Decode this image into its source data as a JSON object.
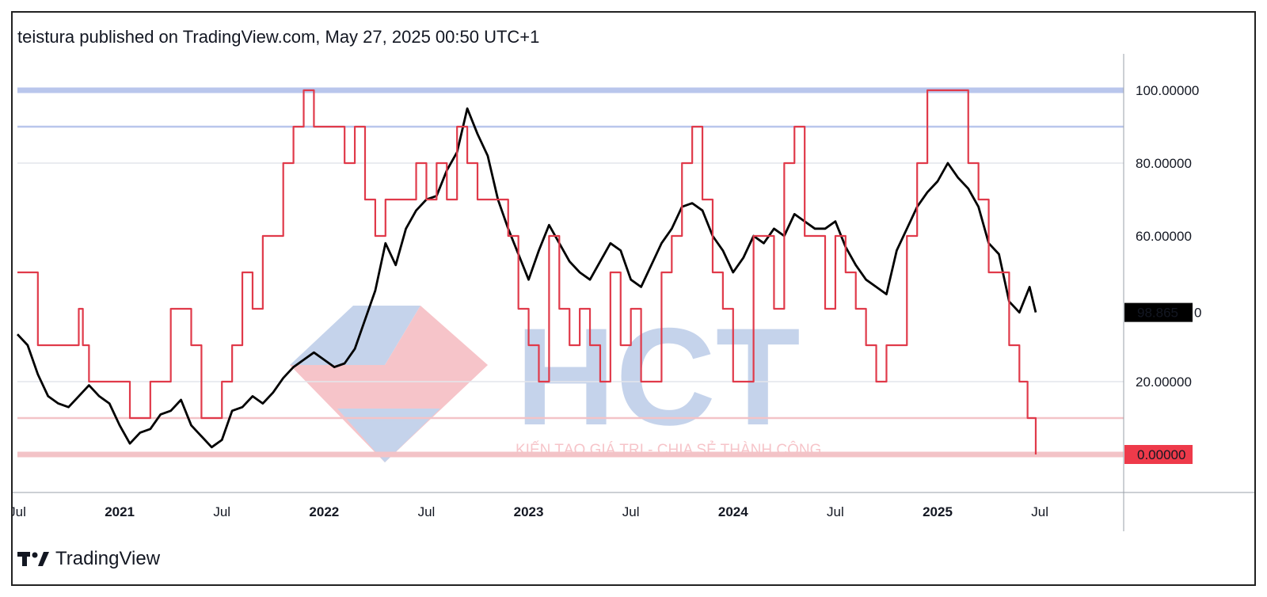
{
  "header": {
    "published": "teistura published on TradingView.com, May 27, 2025 00:50 UTC+1"
  },
  "brand": {
    "name": "TradingView",
    "logo_icon": "tradingview-logo-icon"
  },
  "watermark": {
    "logo_letters": "HCT",
    "tagline": "KIẾN TẠO GIÁ TRỊ - CHIA SẺ THÀNH CÔNG"
  },
  "colors": {
    "price_line": "#000000",
    "indicator_line": "#e03a4a",
    "upper_band": "#b9c6ec",
    "lower_band": "#f3c3c7",
    "badge_price": "#000000",
    "badge_zero": "#ee3a4a"
  },
  "chart_data": {
    "type": "line",
    "title": "",
    "xlabel": "",
    "ylabel": "",
    "ylim": [
      -10,
      110
    ],
    "x_ticks": [
      {
        "label": "Jul",
        "t": 2020.5,
        "bold": false
      },
      {
        "label": "2021",
        "t": 2021.0,
        "bold": true
      },
      {
        "label": "Jul",
        "t": 2021.5,
        "bold": false
      },
      {
        "label": "2022",
        "t": 2022.0,
        "bold": true
      },
      {
        "label": "Jul",
        "t": 2022.5,
        "bold": false
      },
      {
        "label": "2023",
        "t": 2023.0,
        "bold": true
      },
      {
        "label": "Jul",
        "t": 2023.5,
        "bold": false
      },
      {
        "label": "2024",
        "t": 2024.0,
        "bold": true
      },
      {
        "label": "Jul",
        "t": 2024.5,
        "bold": false
      },
      {
        "label": "2025",
        "t": 2025.0,
        "bold": true
      },
      {
        "label": "Jul",
        "t": 2025.5,
        "bold": false
      }
    ],
    "y_ticks": [
      {
        "label": "100.00000",
        "v": 100
      },
      {
        "label": "80.00000",
        "v": 80
      },
      {
        "label": "60.00000",
        "v": 60
      },
      {
        "label": "20.00000",
        "v": 20
      }
    ],
    "horizontal_levels": [
      {
        "v": 100,
        "role": "upper"
      },
      {
        "v": 90,
        "role": "upper"
      },
      {
        "v": 80,
        "role": "grid"
      },
      {
        "v": 20,
        "role": "grid"
      },
      {
        "v": 10,
        "role": "lower"
      },
      {
        "v": 0,
        "role": "lower"
      }
    ],
    "badges": [
      {
        "label": "98.865",
        "v": 39,
        "color": "#000000"
      },
      {
        "label": "0.00000",
        "v": 0,
        "color": "#ee3a4a"
      }
    ],
    "series": [
      {
        "color": "#000000",
        "points": [
          [
            2020.5,
            33
          ],
          [
            2020.55,
            30
          ],
          [
            2020.6,
            22
          ],
          [
            2020.65,
            16
          ],
          [
            2020.7,
            14
          ],
          [
            2020.75,
            13
          ],
          [
            2020.8,
            16
          ],
          [
            2020.85,
            19
          ],
          [
            2020.9,
            16
          ],
          [
            2020.95,
            14
          ],
          [
            2021.0,
            8
          ],
          [
            2021.05,
            3
          ],
          [
            2021.1,
            6
          ],
          [
            2021.15,
            7
          ],
          [
            2021.2,
            11
          ],
          [
            2021.25,
            12
          ],
          [
            2021.3,
            15
          ],
          [
            2021.35,
            8
          ],
          [
            2021.4,
            5
          ],
          [
            2021.45,
            2
          ],
          [
            2021.5,
            4
          ],
          [
            2021.55,
            12
          ],
          [
            2021.6,
            13
          ],
          [
            2021.65,
            16
          ],
          [
            2021.7,
            14
          ],
          [
            2021.75,
            17
          ],
          [
            2021.8,
            21
          ],
          [
            2021.85,
            24
          ],
          [
            2021.9,
            26
          ],
          [
            2021.95,
            28
          ],
          [
            2022.0,
            26
          ],
          [
            2022.05,
            24
          ],
          [
            2022.1,
            25
          ],
          [
            2022.15,
            29
          ],
          [
            2022.2,
            37
          ],
          [
            2022.25,
            45
          ],
          [
            2022.3,
            58
          ],
          [
            2022.35,
            52
          ],
          [
            2022.4,
            62
          ],
          [
            2022.45,
            67
          ],
          [
            2022.5,
            70
          ],
          [
            2022.55,
            71
          ],
          [
            2022.6,
            78
          ],
          [
            2022.65,
            83
          ],
          [
            2022.7,
            95
          ],
          [
            2022.75,
            88
          ],
          [
            2022.8,
            82
          ],
          [
            2022.85,
            70
          ],
          [
            2022.9,
            62
          ],
          [
            2022.95,
            55
          ],
          [
            2023.0,
            48
          ],
          [
            2023.05,
            56
          ],
          [
            2023.1,
            63
          ],
          [
            2023.15,
            58
          ],
          [
            2023.2,
            53
          ],
          [
            2023.25,
            50
          ],
          [
            2023.3,
            48
          ],
          [
            2023.35,
            53
          ],
          [
            2023.4,
            58
          ],
          [
            2023.45,
            56
          ],
          [
            2023.5,
            48
          ],
          [
            2023.55,
            46
          ],
          [
            2023.6,
            52
          ],
          [
            2023.65,
            58
          ],
          [
            2023.7,
            62
          ],
          [
            2023.75,
            68
          ],
          [
            2023.8,
            69
          ],
          [
            2023.85,
            67
          ],
          [
            2023.9,
            60
          ],
          [
            2023.95,
            56
          ],
          [
            2024.0,
            50
          ],
          [
            2024.05,
            54
          ],
          [
            2024.1,
            60
          ],
          [
            2024.15,
            58
          ],
          [
            2024.2,
            62
          ],
          [
            2024.25,
            60
          ],
          [
            2024.3,
            66
          ],
          [
            2024.35,
            64
          ],
          [
            2024.4,
            62
          ],
          [
            2024.45,
            62
          ],
          [
            2024.5,
            64
          ],
          [
            2024.55,
            57
          ],
          [
            2024.6,
            52
          ],
          [
            2024.65,
            48
          ],
          [
            2024.7,
            46
          ],
          [
            2024.75,
            44
          ],
          [
            2024.8,
            56
          ],
          [
            2024.85,
            62
          ],
          [
            2024.9,
            68
          ],
          [
            2024.95,
            72
          ],
          [
            2025.0,
            75
          ],
          [
            2025.05,
            80
          ],
          [
            2025.1,
            76
          ],
          [
            2025.15,
            73
          ],
          [
            2025.2,
            68
          ],
          [
            2025.25,
            58
          ],
          [
            2025.3,
            55
          ],
          [
            2025.35,
            42
          ],
          [
            2025.4,
            39
          ],
          [
            2025.45,
            46
          ],
          [
            2025.48,
            39
          ]
        ]
      },
      {
        "color": "#e03a4a",
        "points": [
          [
            2020.5,
            50
          ],
          [
            2020.55,
            50
          ],
          [
            2020.6,
            30
          ],
          [
            2020.65,
            30
          ],
          [
            2020.7,
            30
          ],
          [
            2020.75,
            30
          ],
          [
            2020.8,
            40
          ],
          [
            2020.82,
            30
          ],
          [
            2020.85,
            20
          ],
          [
            2020.9,
            20
          ],
          [
            2020.95,
            20
          ],
          [
            2021.0,
            20
          ],
          [
            2021.05,
            10
          ],
          [
            2021.1,
            10
          ],
          [
            2021.15,
            20
          ],
          [
            2021.2,
            20
          ],
          [
            2021.25,
            40
          ],
          [
            2021.3,
            40
          ],
          [
            2021.35,
            30
          ],
          [
            2021.4,
            10
          ],
          [
            2021.45,
            10
          ],
          [
            2021.5,
            20
          ],
          [
            2021.55,
            30
          ],
          [
            2021.6,
            50
          ],
          [
            2021.65,
            40
          ],
          [
            2021.7,
            60
          ],
          [
            2021.75,
            60
          ],
          [
            2021.8,
            80
          ],
          [
            2021.85,
            90
          ],
          [
            2021.9,
            100
          ],
          [
            2021.95,
            90
          ],
          [
            2022.0,
            90
          ],
          [
            2022.05,
            90
          ],
          [
            2022.1,
            80
          ],
          [
            2022.15,
            90
          ],
          [
            2022.2,
            70
          ],
          [
            2022.25,
            60
          ],
          [
            2022.3,
            70
          ],
          [
            2022.35,
            70
          ],
          [
            2022.4,
            70
          ],
          [
            2022.45,
            80
          ],
          [
            2022.5,
            70
          ],
          [
            2022.55,
            80
          ],
          [
            2022.6,
            70
          ],
          [
            2022.65,
            90
          ],
          [
            2022.7,
            80
          ],
          [
            2022.75,
            70
          ],
          [
            2022.8,
            70
          ],
          [
            2022.85,
            70
          ],
          [
            2022.9,
            60
          ],
          [
            2022.95,
            40
          ],
          [
            2023.0,
            30
          ],
          [
            2023.05,
            20
          ],
          [
            2023.1,
            60
          ],
          [
            2023.15,
            40
          ],
          [
            2023.2,
            30
          ],
          [
            2023.25,
            40
          ],
          [
            2023.3,
            30
          ],
          [
            2023.35,
            20
          ],
          [
            2023.4,
            50
          ],
          [
            2023.45,
            30
          ],
          [
            2023.5,
            40
          ],
          [
            2023.55,
            20
          ],
          [
            2023.6,
            20
          ],
          [
            2023.65,
            50
          ],
          [
            2023.7,
            60
          ],
          [
            2023.75,
            80
          ],
          [
            2023.8,
            90
          ],
          [
            2023.85,
            70
          ],
          [
            2023.9,
            50
          ],
          [
            2023.95,
            40
          ],
          [
            2024.0,
            20
          ],
          [
            2024.05,
            20
          ],
          [
            2024.1,
            60
          ],
          [
            2024.15,
            60
          ],
          [
            2024.2,
            40
          ],
          [
            2024.25,
            80
          ],
          [
            2024.3,
            90
          ],
          [
            2024.35,
            60
          ],
          [
            2024.4,
            60
          ],
          [
            2024.45,
            40
          ],
          [
            2024.5,
            60
          ],
          [
            2024.55,
            50
          ],
          [
            2024.6,
            40
          ],
          [
            2024.65,
            30
          ],
          [
            2024.7,
            20
          ],
          [
            2024.75,
            30
          ],
          [
            2024.8,
            30
          ],
          [
            2024.85,
            60
          ],
          [
            2024.9,
            80
          ],
          [
            2024.95,
            100
          ],
          [
            2025.0,
            100
          ],
          [
            2025.05,
            100
          ],
          [
            2025.1,
            100
          ],
          [
            2025.15,
            80
          ],
          [
            2025.2,
            70
          ],
          [
            2025.25,
            50
          ],
          [
            2025.3,
            50
          ],
          [
            2025.35,
            30
          ],
          [
            2025.4,
            20
          ],
          [
            2025.44,
            10
          ],
          [
            2025.48,
            0
          ]
        ]
      }
    ]
  }
}
